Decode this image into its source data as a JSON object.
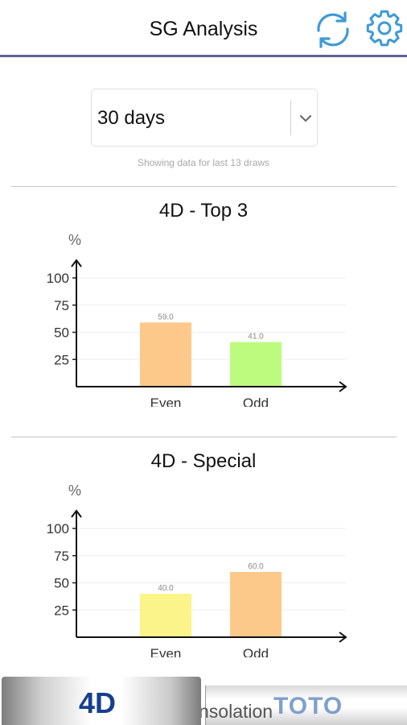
{
  "header": {
    "title": "SG Analysis",
    "icons": [
      "refresh-icon",
      "gear-icon"
    ],
    "accent_color": "#3d9ad8"
  },
  "period_select": {
    "value": "30 days",
    "hint": "Showing data for last 13 draws"
  },
  "chart_data": [
    {
      "type": "bar",
      "title": "4D - Top 3",
      "ylabel": "%",
      "categories": [
        "Even",
        "Odd"
      ],
      "values": [
        59.0,
        41.0
      ],
      "value_labels": [
        "59.0",
        "41.0"
      ],
      "colors": [
        "#fcc98a",
        "#bdfb7e"
      ],
      "yticks": [
        "25",
        "50",
        "75",
        "100"
      ],
      "ylim": [
        0,
        100
      ]
    },
    {
      "type": "bar",
      "title": "4D - Special",
      "ylabel": "%",
      "categories": [
        "Even",
        "Odd"
      ],
      "values": [
        40.0,
        60.0
      ],
      "value_labels": [
        "40.0",
        "60.0"
      ],
      "colors": [
        "#fbf48a",
        "#fcc98a"
      ],
      "yticks": [
        "25",
        "50",
        "75",
        "100"
      ],
      "ylim": [
        0,
        100
      ]
    }
  ],
  "tabs": {
    "active": "4D",
    "inactive": "TOTO",
    "overlap_text": "nsolation"
  }
}
